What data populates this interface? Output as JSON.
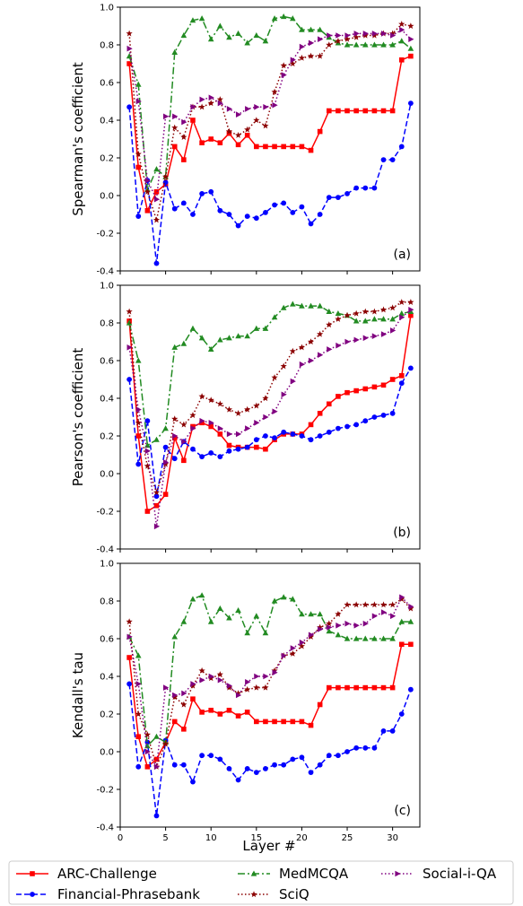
{
  "chart_data": {
    "type": "line",
    "xlabel": "Layer #",
    "x": [
      1,
      2,
      3,
      4,
      5,
      6,
      7,
      8,
      9,
      10,
      11,
      12,
      13,
      14,
      15,
      16,
      17,
      18,
      19,
      20,
      21,
      22,
      23,
      24,
      25,
      26,
      27,
      28,
      29,
      30,
      31,
      32
    ],
    "xticks": [
      0,
      5,
      10,
      15,
      20,
      25,
      30
    ],
    "xlim": [
      0,
      33
    ],
    "legend": {
      "placement": "bottom",
      "entries": [
        {
          "series": "ARC-Challenge",
          "color": "#ff0000",
          "dash": "solid",
          "marker": "square"
        },
        {
          "series": "Financial-Phrasebank",
          "color": "#0000ff",
          "dash": "dashed",
          "marker": "circle"
        },
        {
          "series": "MedMCQA",
          "color": "#228b22",
          "dash": "dashdot",
          "marker": "triangle-up"
        },
        {
          "series": "SciQ",
          "color": "#8b0000",
          "dash": "dotted",
          "marker": "star"
        },
        {
          "series": "Social-i-QA",
          "color": "#800080",
          "dash": "dotted",
          "marker": "triangle-right"
        }
      ]
    },
    "panels": [
      {
        "ylabel": "Spearman's coefficient",
        "tag": "(a)",
        "ylim": [
          -0.4,
          1.0
        ],
        "yticks": [
          -0.4,
          -0.2,
          0.0,
          0.2,
          0.4,
          0.6,
          0.8,
          1.0
        ],
        "series": [
          {
            "name": "ARC-Challenge",
            "values": [
              0.7,
              0.15,
              -0.08,
              0.02,
              0.06,
              0.26,
              0.19,
              0.4,
              0.28,
              0.3,
              0.28,
              0.33,
              0.27,
              0.32,
              0.26,
              0.26,
              0.26,
              0.26,
              0.26,
              0.26,
              0.24,
              0.34,
              0.45,
              0.45,
              0.45,
              0.45,
              0.45,
              0.45,
              0.45,
              0.45,
              0.72,
              0.74
            ]
          },
          {
            "name": "Financial-Phrasebank",
            "values": [
              0.47,
              -0.11,
              0.08,
              -0.36,
              0.07,
              -0.07,
              -0.04,
              -0.1,
              0.01,
              0.02,
              -0.08,
              -0.1,
              -0.16,
              -0.11,
              -0.12,
              -0.09,
              -0.05,
              -0.04,
              -0.09,
              -0.06,
              -0.15,
              -0.1,
              -0.01,
              -0.01,
              0.01,
              0.04,
              0.04,
              0.04,
              0.19,
              0.19,
              0.26,
              0.49
            ]
          },
          {
            "name": "MedMCQA",
            "values": [
              0.74,
              0.59,
              0.03,
              0.14,
              0.1,
              0.76,
              0.85,
              0.93,
              0.94,
              0.83,
              0.9,
              0.84,
              0.86,
              0.81,
              0.85,
              0.82,
              0.94,
              0.95,
              0.94,
              0.88,
              0.88,
              0.88,
              0.84,
              0.81,
              0.8,
              0.8,
              0.8,
              0.8,
              0.8,
              0.8,
              0.82,
              0.78
            ]
          },
          {
            "name": "SciQ",
            "values": [
              0.86,
              0.22,
              0.02,
              -0.13,
              0.1,
              0.36,
              0.31,
              0.47,
              0.47,
              0.49,
              0.51,
              0.34,
              0.32,
              0.35,
              0.4,
              0.37,
              0.55,
              0.69,
              0.7,
              0.73,
              0.74,
              0.74,
              0.8,
              0.82,
              0.83,
              0.84,
              0.85,
              0.85,
              0.86,
              0.86,
              0.91,
              0.9
            ]
          },
          {
            "name": "Social-i-QA",
            "values": [
              0.78,
              0.5,
              0.08,
              -0.02,
              0.42,
              0.42,
              0.39,
              0.47,
              0.51,
              0.52,
              0.49,
              0.46,
              0.43,
              0.46,
              0.47,
              0.47,
              0.48,
              0.64,
              0.72,
              0.79,
              0.81,
              0.83,
              0.85,
              0.85,
              0.85,
              0.86,
              0.86,
              0.86,
              0.86,
              0.85,
              0.88,
              0.83
            ]
          }
        ]
      },
      {
        "ylabel": "Pearson's coefficient",
        "tag": "(b)",
        "ylim": [
          -0.4,
          1.0
        ],
        "yticks": [
          -0.4,
          -0.2,
          0.0,
          0.2,
          0.4,
          0.6,
          0.8,
          1.0
        ],
        "series": [
          {
            "name": "ARC-Challenge",
            "values": [
              0.81,
              0.2,
              -0.2,
              -0.17,
              -0.11,
              0.19,
              0.07,
              0.25,
              0.27,
              0.25,
              0.21,
              0.15,
              0.14,
              0.14,
              0.14,
              0.13,
              0.18,
              0.21,
              0.21,
              0.21,
              0.26,
              0.32,
              0.37,
              0.41,
              0.43,
              0.44,
              0.45,
              0.46,
              0.47,
              0.5,
              0.52,
              0.84
            ]
          },
          {
            "name": "Financial-Phrasebank",
            "values": [
              0.5,
              0.05,
              0.28,
              -0.12,
              0.14,
              0.08,
              0.17,
              0.13,
              0.09,
              0.11,
              0.09,
              0.12,
              0.13,
              0.14,
              0.18,
              0.2,
              0.19,
              0.22,
              0.21,
              0.2,
              0.18,
              0.2,
              0.22,
              0.24,
              0.25,
              0.26,
              0.28,
              0.3,
              0.31,
              0.32,
              0.48,
              0.56
            ]
          },
          {
            "name": "MedMCQA",
            "values": [
              0.8,
              0.6,
              0.15,
              0.18,
              0.24,
              0.67,
              0.69,
              0.77,
              0.72,
              0.66,
              0.71,
              0.72,
              0.73,
              0.73,
              0.77,
              0.77,
              0.83,
              0.88,
              0.9,
              0.89,
              0.89,
              0.89,
              0.86,
              0.85,
              0.84,
              0.81,
              0.81,
              0.82,
              0.82,
              0.82,
              0.85,
              0.86
            ]
          },
          {
            "name": "SciQ",
            "values": [
              0.86,
              0.27,
              0.04,
              -0.1,
              0.05,
              0.29,
              0.26,
              0.31,
              0.41,
              0.39,
              0.37,
              0.34,
              0.32,
              0.34,
              0.36,
              0.4,
              0.51,
              0.57,
              0.65,
              0.67,
              0.7,
              0.74,
              0.79,
              0.82,
              0.84,
              0.85,
              0.86,
              0.86,
              0.87,
              0.88,
              0.91,
              0.91
            ]
          },
          {
            "name": "Social-i-QA",
            "values": [
              0.67,
              0.34,
              0.12,
              -0.28,
              0.06,
              0.2,
              0.17,
              0.24,
              0.28,
              0.27,
              0.24,
              0.21,
              0.21,
              0.24,
              0.27,
              0.3,
              0.33,
              0.42,
              0.49,
              0.58,
              0.6,
              0.63,
              0.66,
              0.68,
              0.7,
              0.71,
              0.72,
              0.73,
              0.74,
              0.76,
              0.83,
              0.87
            ]
          }
        ]
      },
      {
        "ylabel": "Kendall's tau",
        "tag": "(c)",
        "ylim": [
          -0.4,
          1.0
        ],
        "yticks": [
          -0.4,
          -0.2,
          0.0,
          0.2,
          0.4,
          0.6,
          0.8,
          1.0
        ],
        "series": [
          {
            "name": "ARC-Challenge",
            "values": [
              0.5,
              0.08,
              -0.08,
              -0.04,
              0.05,
              0.16,
              0.12,
              0.28,
              0.21,
              0.22,
              0.2,
              0.22,
              0.19,
              0.21,
              0.16,
              0.16,
              0.16,
              0.16,
              0.16,
              0.16,
              0.14,
              0.25,
              0.34,
              0.34,
              0.34,
              0.34,
              0.34,
              0.34,
              0.34,
              0.34,
              0.57,
              0.57
            ]
          },
          {
            "name": "Financial-Phrasebank",
            "values": [
              0.36,
              -0.08,
              0.05,
              -0.34,
              0.06,
              -0.07,
              -0.07,
              -0.16,
              -0.02,
              -0.02,
              -0.04,
              -0.09,
              -0.15,
              -0.09,
              -0.11,
              -0.09,
              -0.07,
              -0.07,
              -0.04,
              -0.03,
              -0.11,
              -0.07,
              -0.02,
              -0.02,
              0.0,
              0.02,
              0.02,
              0.02,
              0.11,
              0.11,
              0.2,
              0.33
            ]
          },
          {
            "name": "MedMCQA",
            "values": [
              0.61,
              0.51,
              0.03,
              0.08,
              0.05,
              0.61,
              0.69,
              0.81,
              0.83,
              0.69,
              0.76,
              0.71,
              0.75,
              0.63,
              0.72,
              0.63,
              0.8,
              0.82,
              0.81,
              0.73,
              0.73,
              0.73,
              0.64,
              0.62,
              0.6,
              0.6,
              0.6,
              0.6,
              0.6,
              0.6,
              0.69,
              0.69
            ]
          },
          {
            "name": "SciQ",
            "values": [
              0.69,
              0.2,
              0.09,
              -0.08,
              0.04,
              0.29,
              0.25,
              0.35,
              0.43,
              0.39,
              0.41,
              0.34,
              0.31,
              0.33,
              0.34,
              0.34,
              0.43,
              0.51,
              0.52,
              0.56,
              0.61,
              0.66,
              0.68,
              0.73,
              0.78,
              0.78,
              0.78,
              0.78,
              0.78,
              0.78,
              0.81,
              0.76
            ]
          },
          {
            "name": "Social-i-QA",
            "values": [
              0.61,
              0.36,
              0.0,
              -0.08,
              0.34,
              0.3,
              0.31,
              0.36,
              0.38,
              0.4,
              0.38,
              0.35,
              0.3,
              0.37,
              0.4,
              0.4,
              0.42,
              0.51,
              0.55,
              0.58,
              0.62,
              0.65,
              0.66,
              0.67,
              0.68,
              0.67,
              0.68,
              0.72,
              0.74,
              0.72,
              0.82,
              0.77
            ]
          }
        ]
      }
    ]
  }
}
